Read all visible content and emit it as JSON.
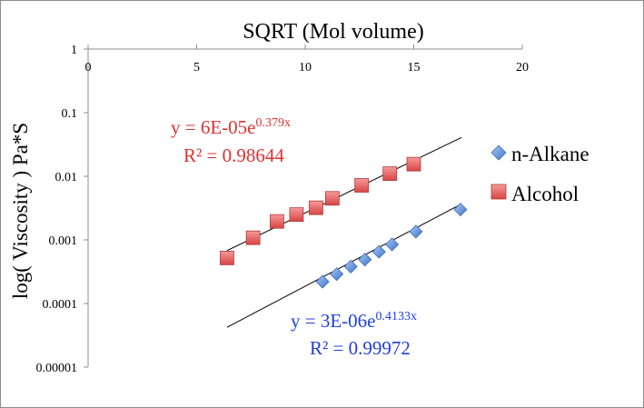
{
  "chart_data": {
    "type": "scatter",
    "title": "SQRT (Mol volume)",
    "xlabel": "",
    "ylabel": "log( Viscosity ) Pa*S",
    "xlim": [
      0,
      20
    ],
    "ylim": [
      1e-05,
      1
    ],
    "y_scale": "log",
    "x_axis_position": "top",
    "x_ticks": [
      0,
      5,
      10,
      15,
      20
    ],
    "x_tick_labels": [
      "0",
      "5",
      "10",
      "15",
      "20"
    ],
    "y_ticks": [
      1,
      0.1,
      0.01,
      0.001,
      0.0001,
      1e-05
    ],
    "y_tick_labels": [
      "1",
      "0.1",
      "0.01",
      "0.001",
      "0.0001",
      "0.00001"
    ],
    "legend_position": "right",
    "series": [
      {
        "name": "n-Alkane",
        "marker": "diamond",
        "color": "#5b8fd9",
        "x": [
          10.8,
          11.45,
          12.1,
          12.75,
          13.4,
          14.0,
          15.1,
          17.15
        ],
        "y": [
          0.00022,
          0.00029,
          0.00038,
          0.00049,
          0.00065,
          0.00085,
          0.00135,
          0.003
        ],
        "trendline": {
          "x_range": [
            6.4,
            17.2
          ],
          "equation_base": "y = 3E-06e",
          "equation_exp": "0.4133x",
          "r2_label": "R² = 0.99972",
          "color": "#1f3fe0"
        }
      },
      {
        "name": "Alcohol",
        "marker": "square",
        "color": "#e35a5a",
        "x": [
          6.4,
          7.6,
          8.7,
          9.6,
          10.5,
          11.25,
          12.6,
          13.9,
          15.0
        ],
        "y": [
          0.00052,
          0.00108,
          0.00195,
          0.0025,
          0.0032,
          0.0045,
          0.0072,
          0.011,
          0.0155
        ],
        "trendline": {
          "x_range": [
            6.4,
            17.2
          ],
          "equation_base": "y = 6E-05e",
          "equation_exp": "0.379x",
          "r2_label": "R² = 0.98644",
          "color": "#e03030"
        }
      }
    ]
  }
}
